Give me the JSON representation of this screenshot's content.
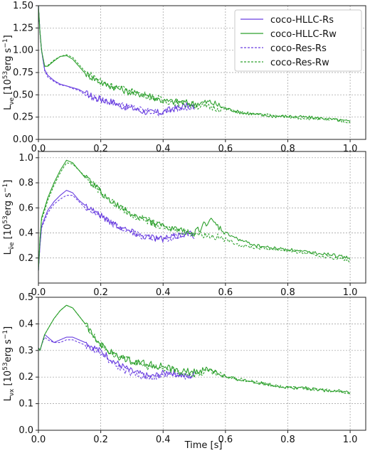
{
  "figure": {
    "xlabel": "Time [s]"
  },
  "colors": {
    "HLLC": "#6a3fe0",
    "Res": "#2ca02c",
    "Rw": "#2ca02c",
    "Rs": "#6a3fe0"
  },
  "chart_data": [
    {
      "type": "line",
      "panel": "top",
      "ylabel_main": "L",
      "ylabel_sub": "νe",
      "ylabel_units_pre": " [10",
      "ylabel_units_sup": "53",
      "ylabel_units_post": "erg s",
      "ylabel_units_sup2": "−1",
      "ylabel_units_end": "]",
      "xlim": [
        0.0,
        1.05
      ],
      "ylim": [
        0.0,
        1.5
      ],
      "xticks": [
        "0.0",
        "0.2",
        "0.4",
        "0.6",
        "0.8",
        "1.0"
      ],
      "xtick_values": [
        0.0,
        0.2,
        0.4,
        0.6,
        0.8,
        1.0
      ],
      "yticks": [
        "0.00",
        "0.25",
        "0.50",
        "0.75",
        "1.00",
        "1.25",
        "1.50"
      ],
      "ytick_values": [
        0.0,
        0.25,
        0.5,
        0.75,
        1.0,
        1.25,
        1.5
      ],
      "grid": true,
      "legend_position": "top-right",
      "series": [
        {
          "name": "coco-HLLC-Rs",
          "color": "#6a3fe0",
          "dash": "solid",
          "x": [
            0.0,
            0.005,
            0.01,
            0.02,
            0.03,
            0.05,
            0.07,
            0.09,
            0.11,
            0.13,
            0.15,
            0.18,
            0.21,
            0.24,
            0.27,
            0.3,
            0.33,
            0.36,
            0.39,
            0.42,
            0.45,
            0.48,
            0.5
          ],
          "y": [
            1.5,
            1.2,
            1.0,
            0.78,
            0.72,
            0.66,
            0.62,
            0.6,
            0.58,
            0.56,
            0.52,
            0.47,
            0.44,
            0.42,
            0.37,
            0.35,
            0.32,
            0.3,
            0.3,
            0.33,
            0.36,
            0.38,
            0.36
          ]
        },
        {
          "name": "coco-HLLC-Rw",
          "color": "#2ca02c",
          "dash": "solid",
          "x": [
            0.0,
            0.005,
            0.01,
            0.02,
            0.03,
            0.05,
            0.07,
            0.09,
            0.11,
            0.13,
            0.15,
            0.18,
            0.21,
            0.25,
            0.3,
            0.35,
            0.4,
            0.45,
            0.5,
            0.55,
            0.6,
            0.65,
            0.7,
            0.75,
            0.8,
            0.85,
            0.9,
            0.95,
            1.0
          ],
          "y": [
            1.5,
            1.2,
            1.0,
            0.82,
            0.82,
            0.88,
            0.93,
            0.94,
            0.9,
            0.82,
            0.74,
            0.68,
            0.62,
            0.58,
            0.52,
            0.5,
            0.43,
            0.42,
            0.4,
            0.42,
            0.35,
            0.3,
            0.28,
            0.26,
            0.26,
            0.25,
            0.24,
            0.22,
            0.2
          ]
        },
        {
          "name": "coco-Res-Rs",
          "color": "#6a3fe0",
          "dash": "dashed",
          "x": [
            0.0,
            0.005,
            0.01,
            0.02,
            0.03,
            0.05,
            0.07,
            0.09,
            0.11,
            0.13,
            0.15,
            0.18,
            0.21,
            0.24,
            0.27,
            0.3,
            0.33,
            0.36,
            0.39,
            0.42,
            0.45,
            0.48,
            0.5
          ],
          "y": [
            1.5,
            1.2,
            1.0,
            0.77,
            0.7,
            0.65,
            0.61,
            0.6,
            0.57,
            0.55,
            0.5,
            0.46,
            0.44,
            0.41,
            0.38,
            0.36,
            0.33,
            0.31,
            0.3,
            0.32,
            0.35,
            0.37,
            0.36
          ]
        },
        {
          "name": "coco-Res-Rw",
          "color": "#2ca02c",
          "dash": "dashed",
          "x": [
            0.0,
            0.005,
            0.01,
            0.02,
            0.03,
            0.05,
            0.07,
            0.09,
            0.11,
            0.13,
            0.15,
            0.18,
            0.21,
            0.25,
            0.3,
            0.35,
            0.4,
            0.45,
            0.5,
            0.55,
            0.6,
            0.65,
            0.7,
            0.75,
            0.8,
            0.85,
            0.9,
            0.95,
            1.0
          ],
          "y": [
            1.5,
            1.2,
            1.0,
            0.82,
            0.83,
            0.89,
            0.93,
            0.95,
            0.92,
            0.84,
            0.76,
            0.7,
            0.64,
            0.59,
            0.54,
            0.49,
            0.44,
            0.41,
            0.38,
            0.36,
            0.34,
            0.3,
            0.28,
            0.27,
            0.25,
            0.24,
            0.23,
            0.22,
            0.19
          ]
        }
      ]
    },
    {
      "type": "line",
      "panel": "middle",
      "ylabel_main": "L",
      "ylabel_sub": "ν̄e",
      "ylabel_units_pre": " [10",
      "ylabel_units_sup": "53",
      "ylabel_units_post": "erg s",
      "ylabel_units_sup2": "−1",
      "ylabel_units_end": "]",
      "xlim": [
        0.0,
        1.05
      ],
      "ylim": [
        0.0,
        1.05
      ],
      "xticks": [
        "0.0",
        "0.2",
        "0.4",
        "0.6",
        "0.8",
        "1.0"
      ],
      "xtick_values": [
        0.0,
        0.2,
        0.4,
        0.6,
        0.8,
        1.0
      ],
      "yticks": [
        "0.2",
        "0.4",
        "0.6",
        "0.8",
        "1.0"
      ],
      "ytick_values": [
        0.2,
        0.4,
        0.6,
        0.8,
        1.0
      ],
      "grid": true,
      "series": [
        {
          "name": "coco-HLLC-Rs",
          "color": "#6a3fe0",
          "dash": "solid",
          "x": [
            0.0,
            0.005,
            0.01,
            0.02,
            0.03,
            0.05,
            0.07,
            0.09,
            0.11,
            0.13,
            0.15,
            0.18,
            0.21,
            0.24,
            0.27,
            0.3,
            0.33,
            0.36,
            0.39,
            0.42,
            0.45,
            0.48,
            0.5
          ],
          "y": [
            0.1,
            0.3,
            0.45,
            0.52,
            0.58,
            0.65,
            0.7,
            0.74,
            0.72,
            0.66,
            0.62,
            0.58,
            0.52,
            0.48,
            0.44,
            0.41,
            0.38,
            0.37,
            0.35,
            0.36,
            0.38,
            0.4,
            0.38
          ]
        },
        {
          "name": "coco-HLLC-Rw",
          "color": "#2ca02c",
          "dash": "solid",
          "x": [
            0.0,
            0.005,
            0.01,
            0.02,
            0.03,
            0.05,
            0.07,
            0.09,
            0.11,
            0.13,
            0.15,
            0.18,
            0.21,
            0.25,
            0.3,
            0.35,
            0.4,
            0.45,
            0.5,
            0.55,
            0.6,
            0.65,
            0.7,
            0.75,
            0.8,
            0.85,
            0.9,
            0.95,
            1.0
          ],
          "y": [
            0.1,
            0.35,
            0.52,
            0.6,
            0.68,
            0.8,
            0.9,
            0.98,
            0.96,
            0.9,
            0.84,
            0.78,
            0.7,
            0.62,
            0.55,
            0.5,
            0.45,
            0.42,
            0.4,
            0.5,
            0.4,
            0.34,
            0.3,
            0.28,
            0.27,
            0.25,
            0.24,
            0.22,
            0.2
          ]
        },
        {
          "name": "coco-Res-Rs",
          "color": "#6a3fe0",
          "dash": "dashed",
          "x": [
            0.0,
            0.005,
            0.01,
            0.02,
            0.03,
            0.05,
            0.07,
            0.09,
            0.11,
            0.13,
            0.15,
            0.18,
            0.21,
            0.24,
            0.27,
            0.3,
            0.33,
            0.36,
            0.39,
            0.42,
            0.45,
            0.48,
            0.5
          ],
          "y": [
            0.1,
            0.3,
            0.44,
            0.5,
            0.56,
            0.63,
            0.67,
            0.7,
            0.7,
            0.65,
            0.6,
            0.56,
            0.51,
            0.47,
            0.43,
            0.4,
            0.38,
            0.36,
            0.35,
            0.36,
            0.38,
            0.39,
            0.38
          ]
        },
        {
          "name": "coco-Res-Rw",
          "color": "#2ca02c",
          "dash": "dashed",
          "x": [
            0.0,
            0.005,
            0.01,
            0.02,
            0.03,
            0.05,
            0.07,
            0.09,
            0.11,
            0.13,
            0.15,
            0.18,
            0.21,
            0.25,
            0.3,
            0.35,
            0.4,
            0.45,
            0.5,
            0.55,
            0.6,
            0.65,
            0.7,
            0.75,
            0.8,
            0.85,
            0.9,
            0.95,
            1.0
          ],
          "y": [
            0.1,
            0.35,
            0.5,
            0.58,
            0.66,
            0.78,
            0.88,
            0.96,
            0.95,
            0.9,
            0.85,
            0.78,
            0.7,
            0.62,
            0.54,
            0.5,
            0.44,
            0.42,
            0.4,
            0.38,
            0.35,
            0.3,
            0.28,
            0.27,
            0.26,
            0.24,
            0.22,
            0.2,
            0.18
          ]
        }
      ]
    },
    {
      "type": "line",
      "panel": "bottom",
      "ylabel_main": "L",
      "ylabel_sub": "νx",
      "ylabel_units_pre": " [10",
      "ylabel_units_sup": "53",
      "ylabel_units_post": "erg s",
      "ylabel_units_sup2": "−1",
      "ylabel_units_end": "]",
      "xlim": [
        0.0,
        1.05
      ],
      "ylim": [
        0.0,
        0.5
      ],
      "xticks": [
        "0.0",
        "0.2",
        "0.4",
        "0.6",
        "0.8",
        "1.0"
      ],
      "xtick_values": [
        0.0,
        0.2,
        0.4,
        0.6,
        0.8,
        1.0
      ],
      "yticks": [
        "0.0",
        "0.1",
        "0.2",
        "0.3",
        "0.4",
        "0.5"
      ],
      "ytick_values": [
        0.0,
        0.1,
        0.2,
        0.3,
        0.4,
        0.5
      ],
      "grid": true,
      "series": [
        {
          "name": "coco-HLLC-Rs",
          "color": "#6a3fe0",
          "dash": "solid",
          "x": [
            0.0,
            0.005,
            0.01,
            0.02,
            0.03,
            0.05,
            0.07,
            0.09,
            0.11,
            0.13,
            0.15,
            0.18,
            0.21,
            0.24,
            0.27,
            0.3,
            0.33,
            0.36,
            0.39,
            0.42,
            0.45,
            0.48,
            0.5
          ],
          "y": [
            0.31,
            0.3,
            0.32,
            0.36,
            0.35,
            0.33,
            0.34,
            0.35,
            0.35,
            0.34,
            0.33,
            0.31,
            0.29,
            0.26,
            0.24,
            0.22,
            0.21,
            0.2,
            0.21,
            0.22,
            0.21,
            0.2,
            0.21
          ]
        },
        {
          "name": "coco-HLLC-Rw",
          "color": "#2ca02c",
          "dash": "solid",
          "x": [
            0.0,
            0.005,
            0.01,
            0.02,
            0.03,
            0.05,
            0.07,
            0.09,
            0.11,
            0.13,
            0.15,
            0.18,
            0.21,
            0.25,
            0.3,
            0.35,
            0.4,
            0.45,
            0.5,
            0.55,
            0.6,
            0.65,
            0.7,
            0.75,
            0.8,
            0.85,
            0.9,
            0.95,
            1.0
          ],
          "y": [
            0.31,
            0.3,
            0.32,
            0.36,
            0.38,
            0.42,
            0.45,
            0.47,
            0.46,
            0.43,
            0.4,
            0.35,
            0.31,
            0.28,
            0.26,
            0.25,
            0.24,
            0.22,
            0.22,
            0.23,
            0.2,
            0.19,
            0.18,
            0.17,
            0.16,
            0.16,
            0.15,
            0.15,
            0.14
          ]
        },
        {
          "name": "coco-Res-Rs",
          "color": "#6a3fe0",
          "dash": "dashed",
          "x": [
            0.0,
            0.005,
            0.01,
            0.02,
            0.03,
            0.05,
            0.07,
            0.09,
            0.11,
            0.13,
            0.15,
            0.18,
            0.21,
            0.24,
            0.27,
            0.3,
            0.33,
            0.36,
            0.39,
            0.42,
            0.45,
            0.48,
            0.5
          ],
          "y": [
            0.31,
            0.3,
            0.32,
            0.35,
            0.34,
            0.33,
            0.33,
            0.34,
            0.34,
            0.33,
            0.32,
            0.3,
            0.28,
            0.25,
            0.23,
            0.21,
            0.2,
            0.2,
            0.2,
            0.21,
            0.21,
            0.2,
            0.2
          ]
        },
        {
          "name": "coco-Res-Rw",
          "color": "#2ca02c",
          "dash": "dashed",
          "x": [
            0.0,
            0.005,
            0.01,
            0.02,
            0.03,
            0.05,
            0.07,
            0.09,
            0.11,
            0.13,
            0.15,
            0.18,
            0.21,
            0.25,
            0.3,
            0.35,
            0.4,
            0.45,
            0.5,
            0.55,
            0.6,
            0.65,
            0.7,
            0.75,
            0.8,
            0.85,
            0.9,
            0.95,
            1.0
          ],
          "y": [
            0.31,
            0.3,
            0.32,
            0.36,
            0.38,
            0.42,
            0.45,
            0.47,
            0.46,
            0.43,
            0.4,
            0.35,
            0.31,
            0.28,
            0.26,
            0.24,
            0.23,
            0.22,
            0.21,
            0.22,
            0.2,
            0.19,
            0.18,
            0.17,
            0.16,
            0.16,
            0.15,
            0.15,
            0.14
          ]
        }
      ]
    }
  ]
}
